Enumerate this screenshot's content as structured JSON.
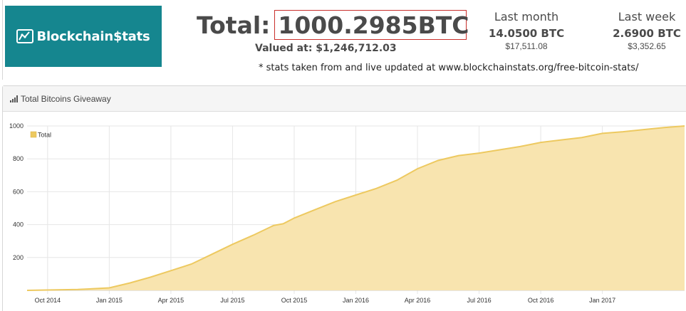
{
  "header": {
    "logo_text": "Blockchain$tats",
    "total_label": "Total:",
    "total_value": "1000.2985BTC",
    "valued_at": "Valued at: $1,246,712.03",
    "last_month": {
      "label": "Last month",
      "btc": "14.0500 BTC",
      "usd": "$17,511.08"
    },
    "last_week": {
      "label": "Last week",
      "btc": "2.6900 BTC",
      "usd": "$3,352.65"
    },
    "footnote": "* stats taken from and live updated at www.blockchainstats.org/free-bitcoin-stats/"
  },
  "panel": {
    "title": "Total Bitcoins Giveaway",
    "icon": "bar-chart-icon"
  },
  "colors": {
    "logo_bg": "#15868f",
    "area_fill": "#f8e4af",
    "area_line": "#edc960",
    "total_box_border": "#c9302c"
  },
  "chart_data": {
    "type": "area",
    "title": "",
    "xlabel": "",
    "ylabel": "",
    "grid": true,
    "legend_position": "top-left",
    "x_ticks": [
      "Oct 2014",
      "Jan 2015",
      "Apr 2015",
      "Jul 2015",
      "Oct 2015",
      "Jan 2016",
      "Apr 2016",
      "Jul 2016",
      "Oct 2016",
      "Jan 2017"
    ],
    "y_ticks": [
      200,
      400,
      600,
      800,
      1000
    ],
    "ylim": [
      0,
      1000
    ],
    "xlim": [
      "2014-09-01",
      "2017-05-01"
    ],
    "series": [
      {
        "name": "Total",
        "x": [
          "2014-09-01",
          "2014-10-01",
          "2014-11-15",
          "2015-01-01",
          "2015-02-01",
          "2015-03-01",
          "2015-04-01",
          "2015-05-01",
          "2015-06-01",
          "2015-07-01",
          "2015-08-01",
          "2015-09-01",
          "2015-09-15",
          "2015-10-01",
          "2015-11-01",
          "2015-12-01",
          "2016-01-01",
          "2016-02-01",
          "2016-03-01",
          "2016-04-01",
          "2016-05-01",
          "2016-06-01",
          "2016-07-01",
          "2016-08-01",
          "2016-09-01",
          "2016-10-01",
          "2016-11-01",
          "2016-12-01",
          "2017-01-01",
          "2017-02-01",
          "2017-03-01",
          "2017-04-01",
          "2017-05-01"
        ],
        "values": [
          0,
          2,
          5,
          15,
          45,
          80,
          120,
          160,
          220,
          280,
          335,
          395,
          405,
          440,
          490,
          540,
          580,
          620,
          670,
          740,
          790,
          820,
          835,
          855,
          875,
          900,
          915,
          930,
          955,
          965,
          978,
          990,
          1000
        ]
      }
    ]
  }
}
